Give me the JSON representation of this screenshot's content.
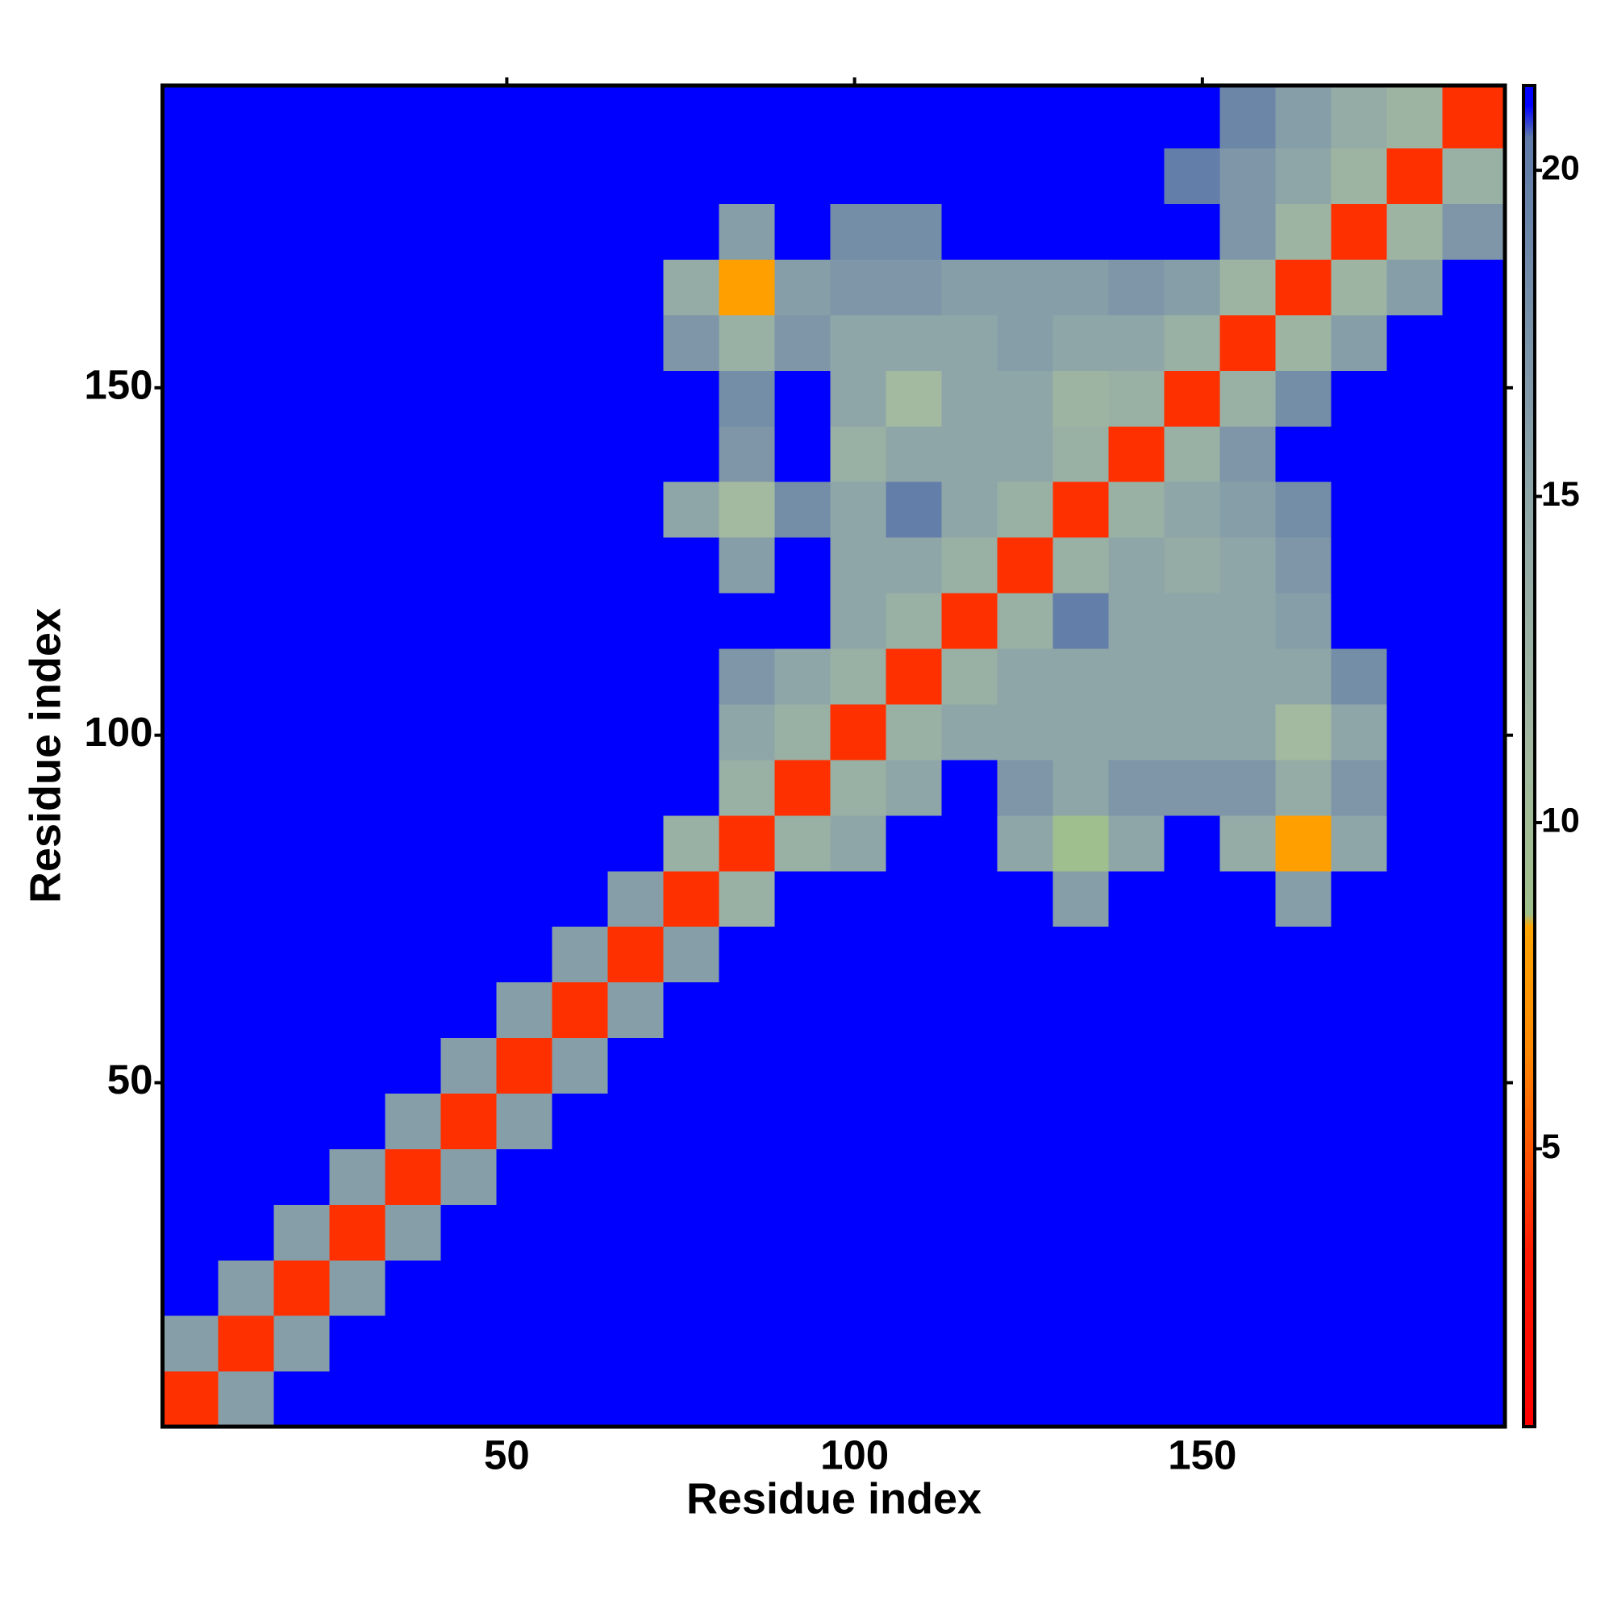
{
  "chart_data": {
    "type": "heatmap",
    "x_label": "Residue index",
    "y_label": "Residue index",
    "xlim": [
      0.5,
      193.5
    ],
    "ylim": [
      0.5,
      193.5
    ],
    "xticks": [
      50,
      100,
      150
    ],
    "yticks": [
      50,
      100,
      150
    ],
    "xbins": [
      0.5,
      8.5,
      16.5,
      24.5,
      32.5,
      40.5,
      48.5,
      56.5,
      64.5,
      72.5,
      80.5,
      88.5,
      96.5,
      104.5,
      112.5,
      120.5,
      128.5,
      136.5,
      144.5,
      152.5,
      160.5,
      168.5,
      176.5,
      184.5,
      193.5
    ],
    "ybins": [
      0.5,
      8.5,
      16.5,
      24.5,
      32.5,
      40.5,
      48.5,
      56.5,
      64.5,
      72.5,
      80.5,
      88.5,
      96.5,
      104.5,
      112.5,
      120.5,
      128.5,
      136.5,
      144.5,
      152.5,
      160.5,
      168.5,
      176.5,
      184.5,
      193.5
    ],
    "z": [
      [
        4,
        16,
        21,
        21,
        21,
        21,
        21,
        21,
        21,
        21,
        21,
        21,
        21,
        21,
        21,
        21,
        21,
        21,
        21,
        21,
        21,
        21,
        21,
        21
      ],
      [
        16,
        4,
        16,
        21,
        21,
        21,
        21,
        21,
        21,
        21,
        21,
        21,
        21,
        21,
        21,
        21,
        21,
        21,
        21,
        21,
        21,
        21,
        21,
        21
      ],
      [
        21,
        16,
        4,
        16,
        21,
        21,
        21,
        21,
        21,
        21,
        21,
        21,
        21,
        21,
        21,
        21,
        21,
        21,
        21,
        21,
        21,
        21,
        21,
        21
      ],
      [
        21,
        21,
        16,
        4,
        16,
        21,
        21,
        21,
        21,
        21,
        21,
        21,
        21,
        21,
        21,
        21,
        21,
        21,
        21,
        21,
        21,
        21,
        21,
        21
      ],
      [
        21,
        21,
        21,
        16,
        4,
        16,
        21,
        21,
        21,
        21,
        21,
        21,
        21,
        21,
        21,
        21,
        21,
        21,
        21,
        21,
        21,
        21,
        21,
        21
      ],
      [
        21,
        21,
        21,
        21,
        16,
        4,
        16,
        21,
        21,
        21,
        21,
        21,
        21,
        21,
        21,
        21,
        21,
        21,
        21,
        21,
        21,
        21,
        21,
        21
      ],
      [
        21,
        21,
        21,
        21,
        21,
        16,
        4,
        16,
        21,
        21,
        21,
        21,
        21,
        21,
        21,
        21,
        21,
        21,
        21,
        21,
        21,
        21,
        21,
        21
      ],
      [
        21,
        21,
        21,
        21,
        21,
        21,
        16,
        4,
        16,
        21,
        21,
        21,
        21,
        21,
        21,
        21,
        21,
        21,
        21,
        21,
        21,
        21,
        21,
        21
      ],
      [
        21,
        21,
        21,
        21,
        21,
        21,
        21,
        16,
        4,
        16,
        21,
        21,
        21,
        21,
        21,
        21,
        21,
        21,
        21,
        21,
        21,
        21,
        21,
        21
      ],
      [
        21,
        21,
        21,
        21,
        21,
        21,
        21,
        21,
        16,
        4,
        13,
        21,
        21,
        21,
        21,
        21,
        16,
        21,
        21,
        21,
        16,
        21,
        21,
        21
      ],
      [
        21,
        21,
        21,
        21,
        21,
        21,
        21,
        21,
        21,
        13,
        4,
        13,
        15,
        21,
        21,
        15,
        9,
        15,
        21,
        14,
        8,
        15,
        21,
        21
      ],
      [
        21,
        21,
        21,
        21,
        21,
        21,
        21,
        21,
        21,
        21,
        13,
        4,
        13,
        15,
        21,
        17,
        15,
        17,
        17,
        17,
        14,
        17,
        21,
        21
      ],
      [
        21,
        21,
        21,
        21,
        21,
        21,
        21,
        21,
        21,
        21,
        15,
        13,
        4,
        13,
        15,
        15,
        15,
        15,
        15,
        15,
        11,
        15,
        21,
        21
      ],
      [
        21,
        21,
        21,
        21,
        21,
        21,
        21,
        21,
        21,
        21,
        17,
        15,
        13,
        4,
        13,
        15,
        15,
        15,
        15,
        15,
        15,
        18,
        21,
        21
      ],
      [
        21,
        21,
        21,
        21,
        21,
        21,
        21,
        21,
        21,
        21,
        21,
        21,
        15,
        13,
        4,
        13,
        20,
        15,
        15,
        15,
        16,
        21,
        21,
        21
      ],
      [
        21,
        21,
        21,
        21,
        21,
        21,
        21,
        21,
        21,
        21,
        16,
        21,
        15,
        15,
        13,
        4,
        13,
        15,
        14,
        15,
        17,
        21,
        21,
        21
      ],
      [
        21,
        21,
        21,
        21,
        21,
        21,
        21,
        21,
        21,
        15,
        11,
        18,
        15,
        20,
        15,
        13,
        4,
        13,
        15,
        16,
        18,
        21,
        21,
        21
      ],
      [
        21,
        21,
        21,
        21,
        21,
        21,
        21,
        21,
        21,
        21,
        17,
        21,
        13,
        15,
        15,
        15,
        13,
        4,
        13,
        17,
        21,
        21,
        21,
        21
      ],
      [
        21,
        21,
        21,
        21,
        21,
        21,
        21,
        21,
        21,
        21,
        18,
        21,
        15,
        11,
        15,
        15,
        12,
        13,
        4,
        13,
        18,
        21,
        21,
        21
      ],
      [
        21,
        21,
        21,
        21,
        21,
        21,
        21,
        21,
        21,
        17,
        13,
        17,
        15,
        15,
        15,
        16,
        15,
        15,
        13,
        4,
        12,
        16,
        21,
        21
      ],
      [
        21,
        21,
        21,
        21,
        21,
        21,
        21,
        21,
        21,
        14,
        8,
        16,
        17,
        17,
        16,
        16,
        16,
        17,
        16,
        12,
        4,
        12,
        16,
        21
      ],
      [
        21,
        21,
        21,
        21,
        21,
        21,
        21,
        21,
        21,
        21,
        16,
        21,
        18,
        18,
        21,
        21,
        21,
        21,
        21,
        17,
        12,
        4,
        12,
        17
      ],
      [
        21,
        21,
        21,
        21,
        21,
        21,
        21,
        21,
        21,
        21,
        21,
        21,
        21,
        21,
        21,
        21,
        21,
        21,
        20,
        17,
        15,
        12,
        4,
        13
      ],
      [
        21,
        21,
        21,
        21,
        21,
        21,
        21,
        21,
        21,
        21,
        21,
        21,
        21,
        21,
        21,
        21,
        21,
        21,
        21,
        19,
        16,
        14,
        12,
        4
      ]
    ],
    "zlim": [
      0.74,
      21.3
    ],
    "zticks": [
      5,
      10,
      15,
      20
    ],
    "colorscale": [
      [
        0.74,
        "#ff0000"
      ],
      [
        3.4,
        "#ff1a00"
      ],
      [
        5,
        "#ff5500"
      ],
      [
        6.5,
        "#ff8800"
      ],
      [
        8.4,
        "#ffa500"
      ],
      [
        8.6,
        "#9fc08a"
      ],
      [
        11,
        "#a3b9a0"
      ],
      [
        15,
        "#8fa6a8"
      ],
      [
        20.5,
        "#5f7aa8"
      ],
      [
        21,
        "#0000ff"
      ]
    ],
    "colorbar": true
  }
}
